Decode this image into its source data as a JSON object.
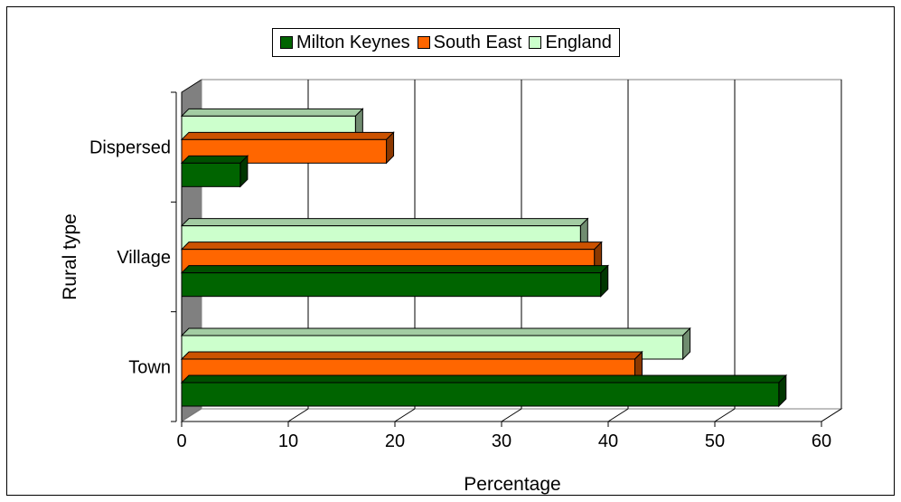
{
  "chart_data": {
    "type": "bar",
    "orientation": "horizontal",
    "categories": [
      "Town",
      "Village",
      "Dispersed"
    ],
    "series": [
      {
        "name": "Milton Keynes",
        "color": "#006400",
        "values": [
          56,
          39.3,
          5.5
        ]
      },
      {
        "name": "South East",
        "color": "#ff6600",
        "values": [
          42.5,
          38.7,
          19.2
        ]
      },
      {
        "name": "England",
        "color": "#ccffcc",
        "values": [
          47,
          37.4,
          16.3
        ]
      }
    ],
    "xlabel": "Percentage",
    "ylabel": "Rural type",
    "xlim": [
      0,
      60
    ],
    "xticks": [
      "0",
      "10",
      "20",
      "30",
      "40",
      "50",
      "60"
    ],
    "grid": "vertical",
    "legend": "top",
    "style": "3d"
  }
}
